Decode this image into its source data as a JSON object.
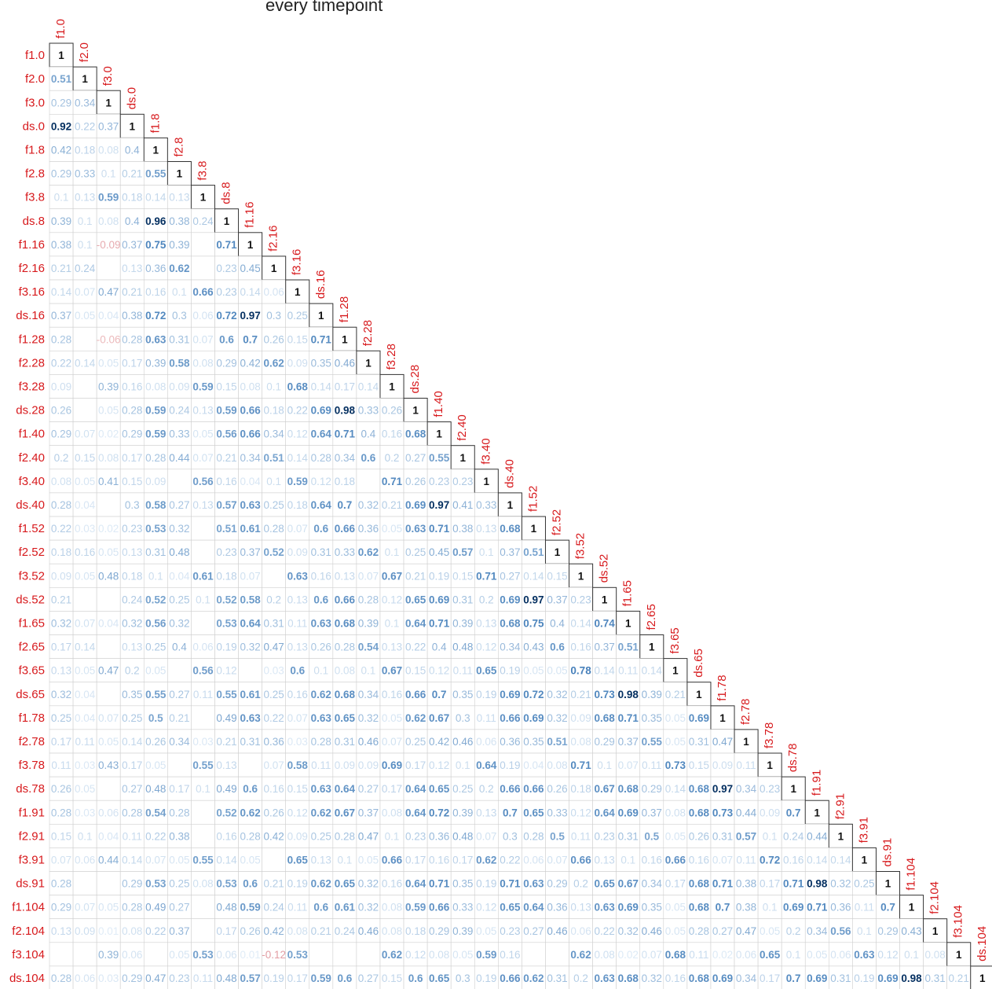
{
  "chart_data": {
    "type": "heatmap",
    "subtype": "lower-triangular correlation matrix",
    "title_fragment": "every timepoint",
    "variables": [
      "f1.0",
      "f2.0",
      "f3.0",
      "ds.0",
      "f1.8",
      "f2.8",
      "f3.8",
      "ds.8",
      "f1.16",
      "f2.16",
      "f3.16",
      "ds.16",
      "f1.28",
      "f2.28",
      "f3.28",
      "ds.28",
      "f1.40",
      "f2.40",
      "f3.40",
      "ds.40",
      "f1.52",
      "f2.52",
      "f3.52",
      "ds.52",
      "f1.65",
      "f2.65",
      "f3.65",
      "ds.65",
      "f1.78",
      "f2.78",
      "f3.78",
      "ds.78",
      "f1.91",
      "f2.91",
      "f3.91",
      "ds.91",
      "f1.104",
      "f2.104",
      "f3.104",
      "ds.104"
    ],
    "colors": {
      "label": "#d7191c",
      "strong": "#053061",
      "positive": "#2166ac",
      "negative": "#b2182b",
      "grid": "#cfcfcf",
      "diagonal_border": "#333333"
    },
    "note": "Each row lists correlations with variables 1..i (last entry is the diagonal 1). Empty cells are values not legible in the image.",
    "rows": [
      [
        1
      ],
      [
        0.51,
        1
      ],
      [
        0.29,
        0.34,
        1
      ],
      [
        0.92,
        0.22,
        0.37,
        1
      ],
      [
        0.42,
        0.18,
        0.08,
        0.4,
        1
      ],
      [
        0.29,
        0.33,
        0.1,
        0.21,
        0.55,
        1
      ],
      [
        0.1,
        0.13,
        0.59,
        0.18,
        0.14,
        0.13,
        1
      ],
      [
        0.39,
        0.1,
        0.08,
        0.4,
        0.96,
        0.38,
        0.24,
        1
      ],
      [
        0.38,
        0.1,
        -0.09,
        0.37,
        0.75,
        0.39,
        null,
        0.71,
        1
      ],
      [
        0.21,
        0.24,
        null,
        0.13,
        0.36,
        0.62,
        null,
        0.23,
        0.45,
        1
      ],
      [
        0.14,
        0.07,
        0.47,
        0.21,
        0.16,
        0.1,
        0.66,
        0.23,
        0.14,
        0.06,
        1
      ],
      [
        0.37,
        0.05,
        0.04,
        0.38,
        0.72,
        0.3,
        0.06,
        0.72,
        0.97,
        0.3,
        0.25,
        1
      ],
      [
        0.28,
        null,
        -0.06,
        0.28,
        0.63,
        0.31,
        0.07,
        0.6,
        0.7,
        0.26,
        0.15,
        0.71,
        1
      ],
      [
        0.22,
        0.14,
        0.05,
        0.17,
        0.39,
        0.58,
        0.08,
        0.29,
        0.42,
        0.62,
        0.09,
        0.35,
        0.46,
        1
      ],
      [
        0.09,
        null,
        0.39,
        0.16,
        0.08,
        0.09,
        0.59,
        0.15,
        0.08,
        0.1,
        0.68,
        0.14,
        0.17,
        0.14,
        1
      ],
      [
        0.26,
        null,
        0.05,
        0.28,
        0.59,
        0.24,
        0.13,
        0.59,
        0.66,
        0.18,
        0.22,
        0.69,
        0.98,
        0.33,
        0.26,
        1
      ],
      [
        0.29,
        0.07,
        0.02,
        0.29,
        0.59,
        0.33,
        0.05,
        0.56,
        0.66,
        0.34,
        0.12,
        0.64,
        0.71,
        0.4,
        0.16,
        0.68,
        1
      ],
      [
        0.2,
        0.15,
        0.08,
        0.17,
        0.28,
        0.44,
        0.07,
        0.21,
        0.34,
        0.51,
        0.14,
        0.28,
        0.34,
        0.6,
        0.2,
        0.27,
        0.55,
        1
      ],
      [
        0.08,
        0.05,
        0.41,
        0.15,
        0.09,
        null,
        0.56,
        0.16,
        0.04,
        0.1,
        0.59,
        0.12,
        0.18,
        null,
        0.71,
        0.26,
        0.23,
        0.23,
        1
      ],
      [
        0.28,
        0.04,
        null,
        0.3,
        0.58,
        0.27,
        0.13,
        0.57,
        0.63,
        0.25,
        0.18,
        0.64,
        0.7,
        0.32,
        0.21,
        0.69,
        0.97,
        0.41,
        0.33,
        1
      ],
      [
        0.22,
        0.03,
        0.02,
        0.23,
        0.53,
        0.32,
        null,
        0.51,
        0.61,
        0.28,
        0.07,
        0.6,
        0.66,
        0.36,
        0.05,
        0.63,
        0.71,
        0.38,
        0.13,
        0.68,
        1
      ],
      [
        0.18,
        0.16,
        0.05,
        0.13,
        0.31,
        0.48,
        null,
        0.23,
        0.37,
        0.52,
        0.09,
        0.31,
        0.33,
        0.62,
        0.1,
        0.25,
        0.45,
        0.57,
        0.1,
        0.37,
        0.51,
        1
      ],
      [
        0.09,
        0.05,
        0.48,
        0.18,
        0.1,
        0.04,
        0.61,
        0.18,
        0.07,
        null,
        0.63,
        0.16,
        0.13,
        0.07,
        0.67,
        0.21,
        0.19,
        0.15,
        0.71,
        0.27,
        0.14,
        0.15,
        1
      ],
      [
        0.21,
        null,
        null,
        0.24,
        0.52,
        0.25,
        0.1,
        0.52,
        0.58,
        0.2,
        0.13,
        0.6,
        0.66,
        0.28,
        0.12,
        0.65,
        0.69,
        0.31,
        0.2,
        0.69,
        0.97,
        0.37,
        0.23,
        1
      ],
      [
        0.32,
        0.07,
        0.04,
        0.32,
        0.56,
        0.32,
        null,
        0.53,
        0.64,
        0.31,
        0.11,
        0.63,
        0.68,
        0.39,
        0.1,
        0.64,
        0.71,
        0.39,
        0.13,
        0.68,
        0.75,
        0.4,
        0.14,
        0.74,
        1
      ],
      [
        0.17,
        0.14,
        null,
        0.13,
        0.25,
        0.4,
        0.06,
        0.19,
        0.32,
        0.47,
        0.13,
        0.26,
        0.28,
        0.54,
        0.13,
        0.22,
        0.4,
        0.48,
        0.12,
        0.34,
        0.43,
        0.6,
        0.16,
        0.37,
        0.51,
        1
      ],
      [
        0.13,
        0.05,
        0.47,
        0.2,
        0.05,
        null,
        0.56,
        0.12,
        null,
        0.03,
        0.6,
        0.1,
        0.08,
        0.1,
        0.67,
        0.15,
        0.12,
        0.11,
        0.65,
        0.19,
        0.05,
        0.05,
        0.78,
        0.14,
        0.11,
        0.14,
        1
      ],
      [
        0.32,
        0.04,
        null,
        0.35,
        0.55,
        0.27,
        0.11,
        0.55,
        0.61,
        0.25,
        0.16,
        0.62,
        0.68,
        0.34,
        0.16,
        0.66,
        0.7,
        0.35,
        0.19,
        0.69,
        0.72,
        0.32,
        0.21,
        0.73,
        0.98,
        0.39,
        0.21,
        1
      ],
      [
        0.25,
        0.04,
        0.07,
        0.25,
        0.5,
        0.21,
        null,
        0.49,
        0.63,
        0.22,
        0.07,
        0.63,
        0.65,
        0.32,
        0.05,
        0.62,
        0.67,
        0.3,
        0.11,
        0.66,
        0.69,
        0.32,
        0.09,
        0.68,
        0.71,
        0.35,
        0.05,
        0.69,
        1
      ],
      [
        0.17,
        0.11,
        0.05,
        0.14,
        0.26,
        0.34,
        0.03,
        0.21,
        0.31,
        0.36,
        0.03,
        0.28,
        0.31,
        0.46,
        0.07,
        0.25,
        0.42,
        0.46,
        0.06,
        0.36,
        0.35,
        0.51,
        0.08,
        0.29,
        0.37,
        0.55,
        0.05,
        0.31,
        0.47,
        1
      ],
      [
        0.11,
        0.03,
        0.43,
        0.17,
        0.05,
        null,
        0.55,
        0.13,
        null,
        0.07,
        0.58,
        0.11,
        0.09,
        0.09,
        0.69,
        0.17,
        0.12,
        0.1,
        0.64,
        0.19,
        0.04,
        0.08,
        0.71,
        0.1,
        0.07,
        0.11,
        0.73,
        0.15,
        0.09,
        0.11,
        1
      ],
      [
        0.26,
        0.05,
        null,
        0.27,
        0.48,
        0.17,
        0.1,
        0.49,
        0.6,
        0.16,
        0.15,
        0.63,
        0.64,
        0.27,
        0.17,
        0.64,
        0.65,
        0.25,
        0.2,
        0.66,
        0.66,
        0.26,
        0.18,
        0.67,
        0.68,
        0.29,
        0.14,
        0.68,
        0.97,
        0.34,
        0.23,
        1
      ],
      [
        0.28,
        0.03,
        0.06,
        0.28,
        0.54,
        0.28,
        null,
        0.52,
        0.62,
        0.26,
        0.12,
        0.62,
        0.67,
        0.37,
        0.08,
        0.64,
        0.72,
        0.39,
        0.13,
        0.7,
        0.65,
        0.33,
        0.12,
        0.64,
        0.69,
        0.37,
        0.08,
        0.68,
        0.73,
        0.44,
        0.09,
        0.7,
        1
      ],
      [
        0.15,
        0.1,
        0.04,
        0.11,
        0.22,
        0.38,
        null,
        0.16,
        0.28,
        0.42,
        0.09,
        0.25,
        0.28,
        0.47,
        0.1,
        0.23,
        0.36,
        0.48,
        0.07,
        0.3,
        0.28,
        0.5,
        0.11,
        0.23,
        0.31,
        0.5,
        0.05,
        0.26,
        0.31,
        0.57,
        0.1,
        0.24,
        0.44,
        1
      ],
      [
        0.07,
        0.06,
        0.44,
        0.14,
        0.07,
        0.05,
        0.55,
        0.14,
        0.05,
        null,
        0.65,
        0.13,
        0.1,
        0.05,
        0.66,
        0.17,
        0.16,
        0.17,
        0.62,
        0.22,
        0.06,
        0.07,
        0.66,
        0.13,
        0.1,
        0.16,
        0.66,
        0.16,
        0.07,
        0.11,
        0.72,
        0.16,
        0.14,
        0.14,
        1
      ],
      [
        0.28,
        null,
        null,
        0.29,
        0.53,
        0.25,
        0.08,
        0.53,
        0.6,
        0.21,
        0.19,
        0.62,
        0.65,
        0.32,
        0.16,
        0.64,
        0.71,
        0.35,
        0.19,
        0.71,
        0.63,
        0.29,
        0.2,
        0.65,
        0.67,
        0.34,
        0.17,
        0.68,
        0.71,
        0.38,
        0.17,
        0.71,
        0.98,
        0.32,
        0.25,
        1
      ],
      [
        0.29,
        0.07,
        0.05,
        0.28,
        0.49,
        0.27,
        null,
        0.48,
        0.59,
        0.24,
        0.11,
        0.6,
        0.61,
        0.32,
        0.08,
        0.59,
        0.66,
        0.33,
        0.12,
        0.65,
        0.64,
        0.36,
        0.13,
        0.63,
        0.69,
        0.35,
        0.05,
        0.68,
        0.7,
        0.38,
        0.1,
        0.69,
        0.71,
        0.36,
        0.11,
        0.7,
        1
      ],
      [
        0.13,
        0.09,
        0.01,
        0.08,
        0.22,
        0.37,
        null,
        0.17,
        0.26,
        0.42,
        0.08,
        0.21,
        0.24,
        0.46,
        0.08,
        0.18,
        0.29,
        0.39,
        0.05,
        0.23,
        0.27,
        0.46,
        0.06,
        0.22,
        0.32,
        0.46,
        0.05,
        0.28,
        0.27,
        0.47,
        0.05,
        0.2,
        0.34,
        0.56,
        0.1,
        0.29,
        0.43,
        1
      ],
      [
        null,
        null,
        0.39,
        0.06,
        null,
        0.05,
        0.53,
        0.06,
        0.01,
        -0.12,
        0.53,
        null,
        null,
        null,
        0.62,
        0.12,
        0.08,
        0.05,
        0.59,
        0.16,
        null,
        null,
        0.62,
        0.08,
        0.02,
        0.07,
        0.68,
        0.11,
        0.02,
        0.06,
        0.65,
        0.1,
        0.05,
        0.06,
        0.63,
        0.12,
        0.1,
        0.08,
        1
      ],
      [
        0.28,
        0.06,
        0.03,
        0.29,
        0.47,
        0.23,
        0.11,
        0.48,
        0.57,
        0.19,
        0.17,
        0.59,
        0.6,
        0.27,
        0.15,
        0.6,
        0.65,
        0.3,
        0.19,
        0.66,
        0.62,
        0.31,
        0.2,
        0.63,
        0.68,
        0.32,
        0.16,
        0.68,
        0.69,
        0.34,
        0.17,
        0.7,
        0.69,
        0.31,
        0.19,
        0.69,
        0.98,
        0.31,
        0.21,
        1
      ]
    ]
  }
}
